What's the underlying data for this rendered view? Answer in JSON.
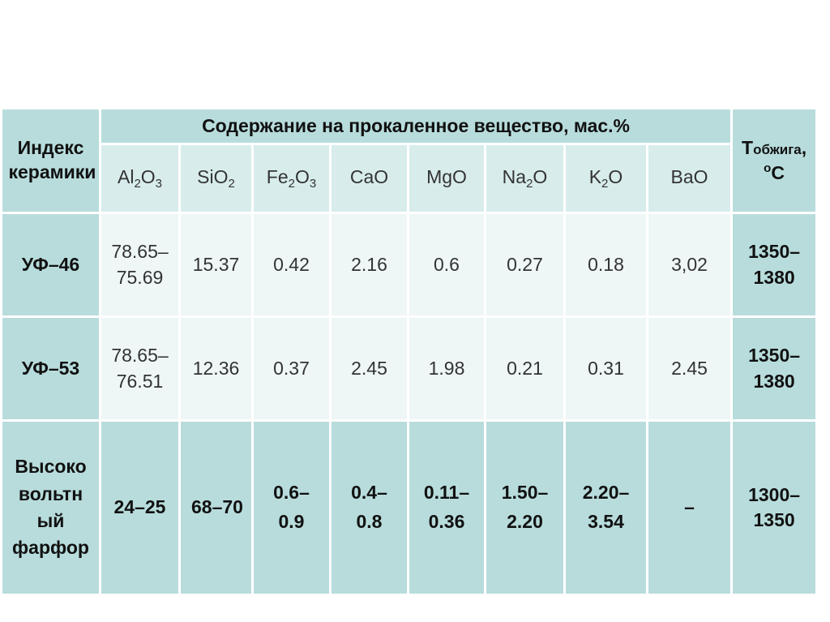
{
  "table": {
    "corner_header": "Индекс керамики",
    "group_header": "Содержание на прокаленное вещество, мас.%",
    "temp_header": {
      "T": "T",
      "sub": "обжига",
      "comma": ",",
      "deg": "o",
      "unit": "C"
    },
    "oxides": [
      {
        "base1": "Al",
        "s1": "2",
        "base2": "O",
        "s2": "3"
      },
      {
        "base1": "SiO",
        "s1": "2",
        "base2": "",
        "s2": ""
      },
      {
        "base1": "Fe",
        "s1": "2",
        "base2": "O",
        "s2": "3"
      },
      {
        "base1": "CaO",
        "s1": "",
        "base2": "",
        "s2": ""
      },
      {
        "base1": "MgO",
        "s1": "",
        "base2": "",
        "s2": ""
      },
      {
        "base1": "Na",
        "s1": "2",
        "base2": "O",
        "s2": ""
      },
      {
        "base1": "K",
        "s1": "2",
        "base2": "O",
        "s2": ""
      },
      {
        "base1": "BaO",
        "s1": "",
        "base2": "",
        "s2": ""
      }
    ],
    "rows": [
      {
        "name": "УФ–46",
        "values": [
          "78.65–75.69",
          "15.37",
          "0.42",
          "2.16",
          "0.6",
          "0.27",
          "0.18",
          "3,02"
        ],
        "temp": "1350–1380"
      },
      {
        "name": "УФ–53",
        "values": [
          "78.65–76.51",
          "12.36",
          "0.37",
          "2.45",
          "1.98",
          "0.21",
          "0.31",
          "2.45"
        ],
        "temp": "1350–1380"
      },
      {
        "name": "Высоко вольтн ый фарфор",
        "values": [
          "24–25",
          "68–70",
          "0.6– 0.9",
          "0.4– 0.8",
          "0.11– 0.36",
          "1.50– 2.20",
          "2.20– 3.54",
          "–"
        ],
        "temp": "1300–1350"
      }
    ]
  },
  "colors": {
    "header": "#b8dcdc",
    "subheader": "#d8ecec",
    "light_cell": "#eef6f6",
    "border": "#ffffff"
  }
}
